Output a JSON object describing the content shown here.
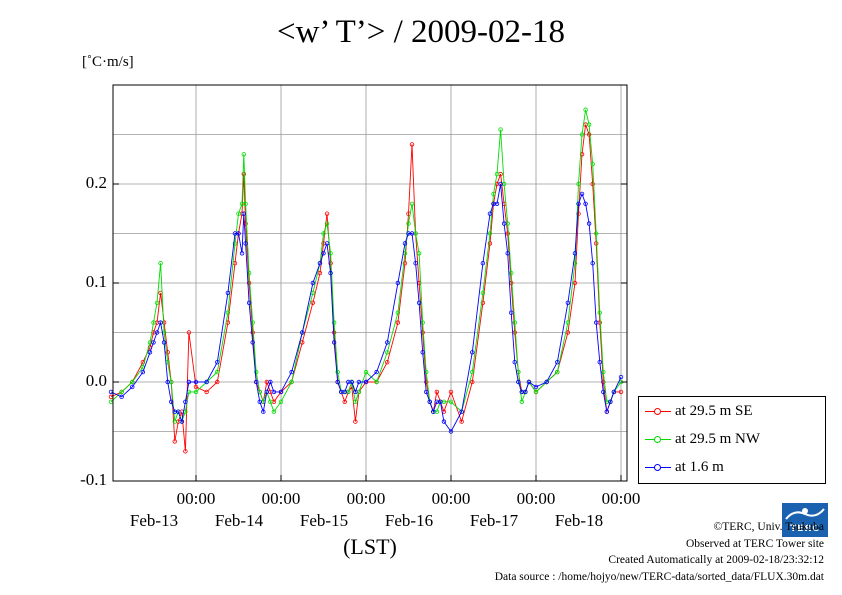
{
  "title": "<w’ T’> / 2009-02-18",
  "unit_label": "[˚C·m/s]",
  "xlabel": "(LST)",
  "legend": [
    "at 29.5 m SE",
    "at 29.5 m NW",
    "at 1.6 m"
  ],
  "credits": {
    "copyright": "©TERC, Univ. Tsukuba",
    "observed": "Observed at TERC Tower site",
    "created": "Created Automatically at 2009-02-18/23:32:12",
    "source": "Data source : /home/hojyo/new/TERC-data/sorted_data/FLUX.30m.dat"
  },
  "logo_text": "TERC",
  "chart_data": {
    "type": "line",
    "title": "<w’ T’> / 2009-02-18",
    "ylabel": "[˚C·m/s]",
    "xlabel": "(LST)",
    "ylim": [
      -0.1,
      0.3
    ],
    "yticks": [
      "-0.1",
      "0.0",
      "0.1",
      "0.2"
    ],
    "xticks": [
      {
        "time": "00:00",
        "date": "Feb-13"
      },
      {
        "time": "00:00",
        "date": "Feb-14"
      },
      {
        "time": "00:00",
        "date": "Feb-15"
      },
      {
        "time": "00:00",
        "date": "Feb-16"
      },
      {
        "time": "00:00",
        "date": "Feb-17"
      },
      {
        "time": "00:00",
        "date": "Feb-18"
      }
    ],
    "x_unit": "hours from 2009-02-12 00:00 LST",
    "xlim": [
      0,
      144
    ],
    "grid": true,
    "legend_position": "right, outside plot",
    "series": [
      {
        "name": "at 29.5 m SE",
        "color": "#ff0000",
        "x": [
          0,
          3,
          6,
          9,
          11,
          12,
          13,
          14,
          15,
          16,
          17,
          18,
          19,
          20,
          21,
          22,
          24,
          27,
          30,
          33,
          35,
          36,
          37,
          37.5,
          38,
          39,
          40,
          41,
          42,
          43,
          44,
          45,
          46,
          48,
          51,
          54,
          57,
          59,
          60,
          61,
          62,
          63,
          64,
          65,
          66,
          67,
          68,
          69,
          70,
          72,
          75,
          78,
          81,
          83,
          84,
          85,
          86,
          87,
          88,
          89,
          90,
          91,
          92,
          93,
          94,
          96,
          99,
          102,
          105,
          107,
          108,
          109,
          110,
          111,
          112,
          113,
          114,
          115,
          116,
          117,
          118,
          120,
          123,
          126,
          129,
          131,
          132,
          133,
          134,
          135,
          136,
          137,
          138,
          139,
          140,
          141,
          142,
          144
        ],
        "y": [
          -0.015,
          -0.01,
          0.0,
          0.02,
          0.035,
          0.05,
          0.06,
          0.09,
          0.06,
          0.03,
          0.0,
          -0.06,
          -0.04,
          -0.03,
          -0.07,
          0.05,
          -0.005,
          -0.01,
          0.0,
          0.06,
          0.12,
          0.15,
          0.17,
          0.21,
          0.16,
          0.1,
          0.05,
          0.0,
          -0.01,
          -0.02,
          0.0,
          -0.01,
          -0.02,
          -0.01,
          0.0,
          0.04,
          0.08,
          0.11,
          0.14,
          0.17,
          0.12,
          0.05,
          0.0,
          -0.01,
          -0.02,
          -0.01,
          -0.005,
          -0.04,
          -0.01,
          0.0,
          0.0,
          0.02,
          0.06,
          0.12,
          0.17,
          0.24,
          0.15,
          0.1,
          0.05,
          0.0,
          -0.02,
          -0.03,
          -0.01,
          -0.02,
          -0.03,
          -0.01,
          -0.04,
          0.0,
          0.08,
          0.14,
          0.18,
          0.2,
          0.21,
          0.18,
          0.15,
          0.1,
          0.05,
          0.01,
          -0.01,
          -0.01,
          0.0,
          -0.01,
          0.0,
          0.01,
          0.05,
          0.1,
          0.17,
          0.23,
          0.26,
          0.25,
          0.2,
          0.14,
          0.06,
          0.0,
          -0.03,
          -0.02,
          -0.01,
          -0.01
        ]
      },
      {
        "name": "at 29.5 m NW",
        "color": "#00dd00",
        "x": [
          0,
          3,
          6,
          9,
          11,
          12,
          13,
          14,
          15,
          16,
          17,
          18,
          19,
          20,
          21,
          22,
          24,
          27,
          30,
          33,
          35,
          36,
          37,
          37.5,
          38,
          39,
          40,
          41,
          42,
          43,
          44,
          45,
          46,
          48,
          51,
          54,
          57,
          59,
          60,
          61,
          62,
          63,
          64,
          65,
          66,
          67,
          68,
          69,
          70,
          72,
          75,
          78,
          81,
          83,
          84,
          85,
          86,
          87,
          88,
          89,
          90,
          91,
          92,
          93,
          94,
          96,
          99,
          102,
          105,
          107,
          108,
          109,
          110,
          111,
          112,
          113,
          114,
          115,
          116,
          117,
          118,
          120,
          123,
          126,
          129,
          131,
          132,
          133,
          134,
          135,
          136,
          137,
          138,
          139,
          140,
          141,
          142,
          144
        ],
        "y": [
          -0.02,
          -0.01,
          0.0,
          0.015,
          0.04,
          0.06,
          0.08,
          0.12,
          0.05,
          0.02,
          0.0,
          -0.04,
          -0.03,
          -0.04,
          -0.03,
          -0.01,
          -0.01,
          0.0,
          0.01,
          0.07,
          0.14,
          0.17,
          0.18,
          0.23,
          0.18,
          0.11,
          0.06,
          0.01,
          -0.01,
          -0.02,
          -0.01,
          -0.02,
          -0.03,
          -0.02,
          0.0,
          0.05,
          0.09,
          0.12,
          0.15,
          0.16,
          0.13,
          0.06,
          0.01,
          -0.01,
          -0.01,
          -0.01,
          0.0,
          -0.02,
          -0.01,
          0.01,
          0.0,
          0.03,
          0.07,
          0.13,
          0.16,
          0.18,
          0.15,
          0.13,
          0.06,
          0.01,
          -0.02,
          -0.03,
          -0.03,
          -0.02,
          -0.02,
          -0.02,
          -0.03,
          0.01,
          0.09,
          0.15,
          0.19,
          0.21,
          0.255,
          0.2,
          0.16,
          0.11,
          0.06,
          0.01,
          -0.02,
          -0.01,
          0.0,
          -0.01,
          0.0,
          0.01,
          0.06,
          0.12,
          0.2,
          0.25,
          0.275,
          0.26,
          0.22,
          0.15,
          0.07,
          0.01,
          -0.02,
          -0.02,
          -0.01,
          0.0
        ]
      },
      {
        "name": "at 1.6 m",
        "color": "#0000ff",
        "x": [
          0,
          3,
          6,
          9,
          11,
          12,
          13,
          14,
          15,
          16,
          17,
          18,
          19,
          20,
          21,
          22,
          24,
          27,
          30,
          33,
          35,
          36,
          37,
          37.5,
          38,
          39,
          40,
          41,
          42,
          43,
          44,
          45,
          46,
          48,
          51,
          54,
          57,
          59,
          60,
          61,
          62,
          63,
          64,
          65,
          66,
          67,
          68,
          69,
          70,
          72,
          75,
          78,
          81,
          83,
          84,
          85,
          86,
          87,
          88,
          89,
          90,
          91,
          92,
          93,
          94,
          96,
          99,
          102,
          105,
          107,
          108,
          109,
          110,
          111,
          112,
          113,
          114,
          115,
          116,
          117,
          118,
          120,
          123,
          126,
          129,
          131,
          132,
          133,
          134,
          135,
          136,
          137,
          138,
          139,
          140,
          141,
          142,
          144
        ],
        "y": [
          -0.01,
          -0.015,
          -0.005,
          0.01,
          0.03,
          0.04,
          0.05,
          0.06,
          0.04,
          0.0,
          -0.02,
          -0.03,
          -0.03,
          -0.04,
          -0.02,
          0.0,
          0.0,
          0.0,
          0.02,
          0.09,
          0.15,
          0.15,
          0.13,
          0.17,
          0.14,
          0.08,
          0.04,
          0.0,
          -0.02,
          -0.03,
          -0.01,
          0.0,
          -0.01,
          -0.01,
          0.01,
          0.05,
          0.1,
          0.12,
          0.13,
          0.14,
          0.11,
          0.04,
          0.0,
          -0.01,
          -0.01,
          0.0,
          0.0,
          -0.01,
          0.0,
          0.0,
          0.01,
          0.04,
          0.1,
          0.14,
          0.15,
          0.15,
          0.12,
          0.08,
          0.03,
          -0.01,
          -0.02,
          -0.03,
          -0.02,
          -0.02,
          -0.04,
          -0.05,
          -0.03,
          0.03,
          0.12,
          0.17,
          0.18,
          0.18,
          0.2,
          0.16,
          0.13,
          0.07,
          0.02,
          0.0,
          -0.01,
          -0.01,
          0.0,
          -0.005,
          0.0,
          0.02,
          0.08,
          0.13,
          0.18,
          0.19,
          0.18,
          0.16,
          0.12,
          0.06,
          0.02,
          -0.01,
          -0.03,
          -0.02,
          -0.01,
          0.005
        ]
      }
    ]
  }
}
